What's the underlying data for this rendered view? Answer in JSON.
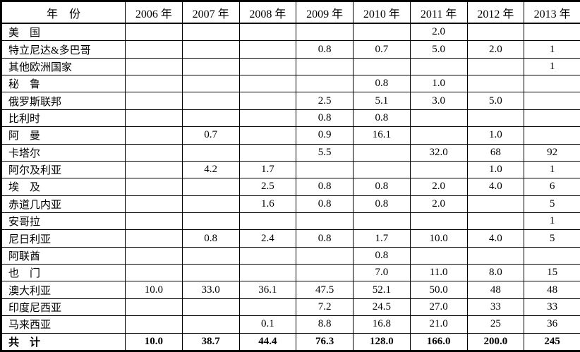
{
  "table": {
    "header": [
      "年　份",
      "2006 年",
      "2007 年",
      "2008 年",
      "2009 年",
      "2010 年",
      "2011 年",
      "2012 年",
      "2013 年"
    ],
    "rows": [
      {
        "label": "美　国",
        "values": [
          "",
          "",
          "",
          "",
          "",
          "2.0",
          "",
          ""
        ]
      },
      {
        "label": "特立尼达&多巴哥",
        "values": [
          "",
          "",
          "",
          "0.8",
          "0.7",
          "5.0",
          "2.0",
          "1"
        ]
      },
      {
        "label": "其他欧洲国家",
        "values": [
          "",
          "",
          "",
          "",
          "",
          "",
          "",
          "1"
        ]
      },
      {
        "label": "秘　鲁",
        "values": [
          "",
          "",
          "",
          "",
          "0.8",
          "1.0",
          "",
          ""
        ]
      },
      {
        "label": "俄罗斯联邦",
        "values": [
          "",
          "",
          "",
          "2.5",
          "5.1",
          "3.0",
          "5.0",
          ""
        ]
      },
      {
        "label": "比利时",
        "values": [
          "",
          "",
          "",
          "0.8",
          "0.8",
          "",
          "",
          ""
        ]
      },
      {
        "label": "阿　曼",
        "values": [
          "",
          "0.7",
          "",
          "0.9",
          "16.1",
          "",
          "1.0",
          ""
        ]
      },
      {
        "label": "卡塔尔",
        "values": [
          "",
          "",
          "",
          "5.5",
          "",
          "32.0",
          "68",
          "92"
        ]
      },
      {
        "label": "阿尔及利亚",
        "values": [
          "",
          "4.2",
          "1.7",
          "",
          "",
          "",
          "1.0",
          "1"
        ]
      },
      {
        "label": "埃　及",
        "values": [
          "",
          "",
          "2.5",
          "0.8",
          "0.8",
          "2.0",
          "4.0",
          "6"
        ]
      },
      {
        "label": "赤道几内亚",
        "values": [
          "",
          "",
          "1.6",
          "0.8",
          "0.8",
          "2.0",
          "",
          "5"
        ]
      },
      {
        "label": "安哥拉",
        "values": [
          "",
          "",
          "",
          "",
          "",
          "",
          "",
          "1"
        ]
      },
      {
        "label": "尼日利亚",
        "values": [
          "",
          "0.8",
          "2.4",
          "0.8",
          "1.7",
          "10.0",
          "4.0",
          "5"
        ]
      },
      {
        "label": "阿联酋",
        "values": [
          "",
          "",
          "",
          "",
          "0.8",
          "",
          "",
          ""
        ]
      },
      {
        "label": "也　门",
        "values": [
          "",
          "",
          "",
          "",
          "7.0",
          "11.0",
          "8.0",
          "15"
        ]
      },
      {
        "label": "澳大利亚",
        "values": [
          "10.0",
          "33.0",
          "36.1",
          "47.5",
          "52.1",
          "50.0",
          "48",
          "48"
        ]
      },
      {
        "label": "印度尼西亚",
        "values": [
          "",
          "",
          "",
          "7.2",
          "24.5",
          "27.0",
          "33",
          "33"
        ]
      },
      {
        "label": "马来西亚",
        "values": [
          "",
          "",
          "0.1",
          "8.8",
          "16.8",
          "21.0",
          "25",
          "36"
        ]
      },
      {
        "label": "共　计",
        "values": [
          "10.0",
          "38.7",
          "44.4",
          "76.3",
          "128.0",
          "166.0",
          "200.0",
          "245"
        ],
        "is_total": true
      }
    ],
    "colors": {
      "border": "#000000",
      "text": "#000000",
      "background": "#ffffff"
    }
  }
}
